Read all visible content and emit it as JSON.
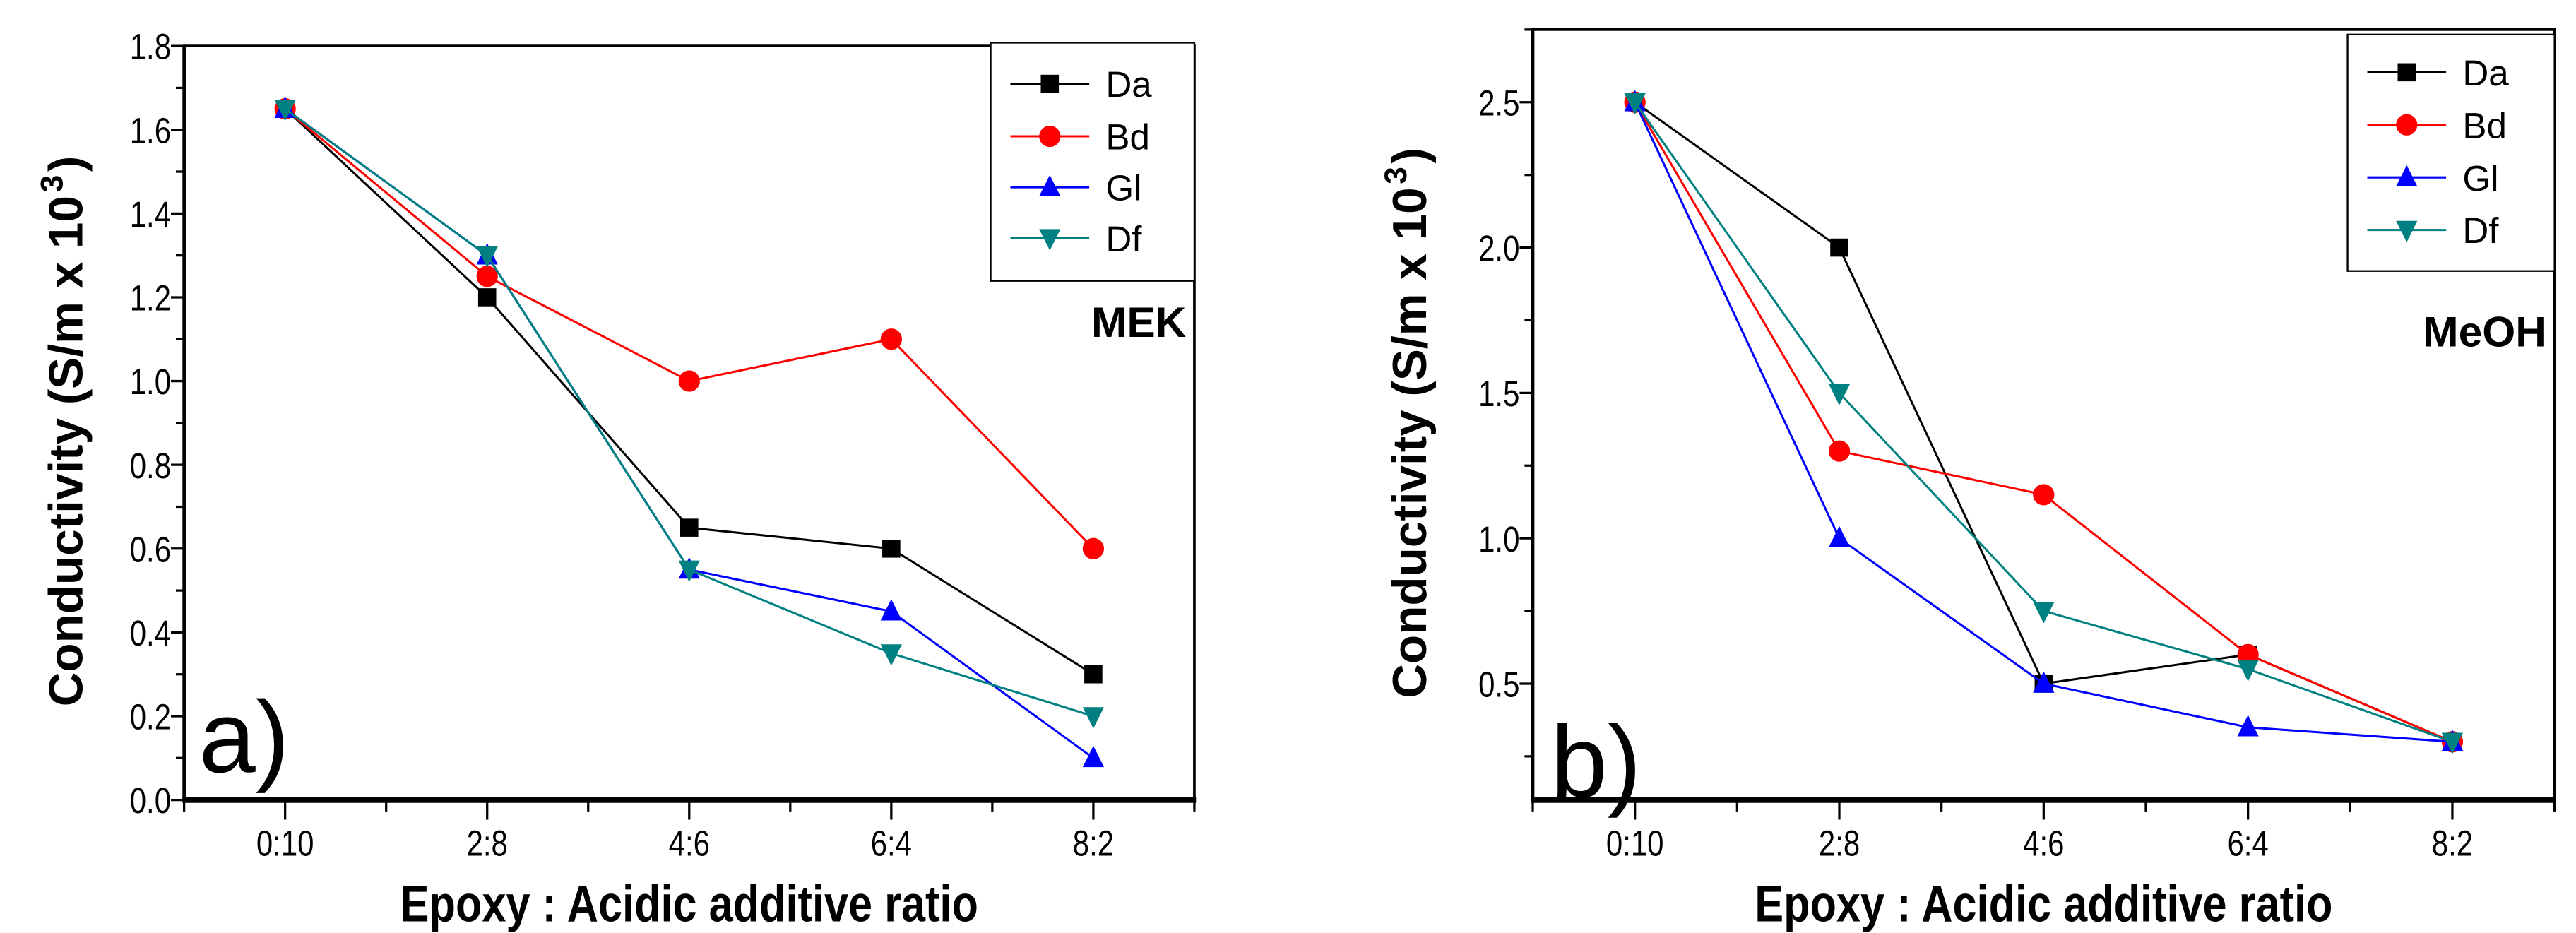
{
  "chart_data": [
    {
      "type": "line",
      "panel_label": "a)",
      "annotation": "MEK",
      "xlabel": "Epoxy : Acidic additive ratio",
      "ylabel_main": "Conductivity (S/m x 10",
      "ylabel_sup": "3",
      "ylabel_end": ")",
      "categories": [
        "0:10",
        "2:8",
        "4:6",
        "6:4",
        "8:2"
      ],
      "ylim": [
        0,
        1.8
      ],
      "yticks": [
        0.0,
        0.2,
        0.4,
        0.6,
        0.8,
        1.0,
        1.2,
        1.4,
        1.6,
        1.8
      ],
      "ytick_labels": [
        "0.0",
        "0.2",
        "0.4",
        "0.6",
        "0.8",
        "1.0",
        "1.2",
        "1.4",
        "1.6",
        "1.8"
      ],
      "yminor_step": 0.1,
      "grid": false,
      "legend_position": "top-right",
      "series": [
        {
          "name": "Da",
          "color": "#000000",
          "marker": "square",
          "values": [
            1.65,
            1.2,
            0.65,
            0.6,
            0.3
          ]
        },
        {
          "name": "Bd",
          "color": "#ff0000",
          "marker": "circle",
          "values": [
            1.65,
            1.25,
            1.0,
            1.1,
            0.6
          ]
        },
        {
          "name": "Gl",
          "color": "#0000ff",
          "marker": "triangle-up",
          "values": [
            1.65,
            1.3,
            0.55,
            0.45,
            0.1
          ]
        },
        {
          "name": "Df",
          "color": "#008080",
          "marker": "triangle-down",
          "values": [
            1.65,
            1.3,
            0.55,
            0.35,
            0.2
          ]
        }
      ]
    },
    {
      "type": "line",
      "panel_label": "b)",
      "annotation": "MeOH",
      "xlabel": "Epoxy : Acidic additive ratio",
      "ylabel_main": "Conductivity (S/m x 10",
      "ylabel_sup": "3",
      "ylabel_end": ")",
      "categories": [
        "0:10",
        "2:8",
        "4:6",
        "6:4",
        "8:2"
      ],
      "ylim": [
        0.1,
        2.75
      ],
      "yticks": [
        0.5,
        1.0,
        1.5,
        2.0,
        2.5
      ],
      "ytick_labels": [
        "0.5",
        "1.0",
        "1.5",
        "2.0",
        "2.5"
      ],
      "yminor_step": 0.25,
      "grid": false,
      "legend_position": "top-right",
      "series": [
        {
          "name": "Da",
          "color": "#000000",
          "marker": "square",
          "values": [
            2.5,
            2.0,
            0.5,
            0.6,
            0.3
          ]
        },
        {
          "name": "Bd",
          "color": "#ff0000",
          "marker": "circle",
          "values": [
            2.5,
            1.3,
            1.15,
            0.6,
            0.3
          ]
        },
        {
          "name": "Gl",
          "color": "#0000ff",
          "marker": "triangle-up",
          "values": [
            2.5,
            1.0,
            0.5,
            0.35,
            0.3
          ]
        },
        {
          "name": "Df",
          "color": "#008080",
          "marker": "triangle-down",
          "values": [
            2.5,
            1.5,
            0.75,
            0.55,
            0.3
          ]
        }
      ]
    }
  ]
}
